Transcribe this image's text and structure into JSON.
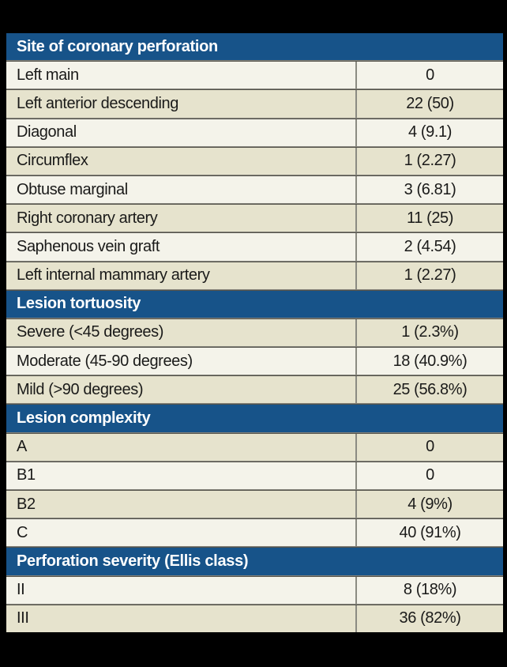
{
  "page": {
    "background": "#000000"
  },
  "table": {
    "accent_color": "#175389",
    "row_light": "#f4f3ea",
    "row_dark": "#e6e3cd",
    "sections": [
      {
        "title": "Site of coronary perforation",
        "rows": [
          {
            "label": "Left main",
            "value": "0",
            "shade": "light"
          },
          {
            "label": "Left anterior descending",
            "value": "22 (50)",
            "shade": "dark"
          },
          {
            "label": "Diagonal",
            "value": "4 (9.1)",
            "shade": "light"
          },
          {
            "label": "Circumflex",
            "value": "1 (2.27)",
            "shade": "dark"
          },
          {
            "label": "Obtuse marginal",
            "value": "3 (6.81)",
            "shade": "light"
          },
          {
            "label": "Right coronary artery",
            "value": "11 (25)",
            "shade": "dark"
          },
          {
            "label": "Saphenous vein graft",
            "value": "2 (4.54)",
            "shade": "light"
          },
          {
            "label": "Left internal mammary artery",
            "value": "1 (2.27)",
            "shade": "dark"
          }
        ]
      },
      {
        "title": "Lesion tortuosity",
        "rows": [
          {
            "label": "Severe (<45 degrees)",
            "value": "1 (2.3%)",
            "shade": "dark"
          },
          {
            "label": "Moderate (45-90 degrees)",
            "value": "18 (40.9%)",
            "shade": "light"
          },
          {
            "label": "Mild (>90 degrees)",
            "value": "25 (56.8%)",
            "shade": "dark"
          }
        ]
      },
      {
        "title": "Lesion complexity",
        "rows": [
          {
            "label": "A",
            "value": "0",
            "shade": "dark"
          },
          {
            "label": "B1",
            "value": "0",
            "shade": "light"
          },
          {
            "label": "B2",
            "value": "4 (9%)",
            "shade": "dark"
          },
          {
            "label": "C",
            "value": "40 (91%)",
            "shade": "light"
          }
        ]
      },
      {
        "title": "Perforation severity (Ellis class)",
        "rows": [
          {
            "label": "II",
            "value": "8 (18%)",
            "shade": "light"
          },
          {
            "label": "III",
            "value": "36 (82%)",
            "shade": "dark"
          }
        ]
      }
    ]
  }
}
